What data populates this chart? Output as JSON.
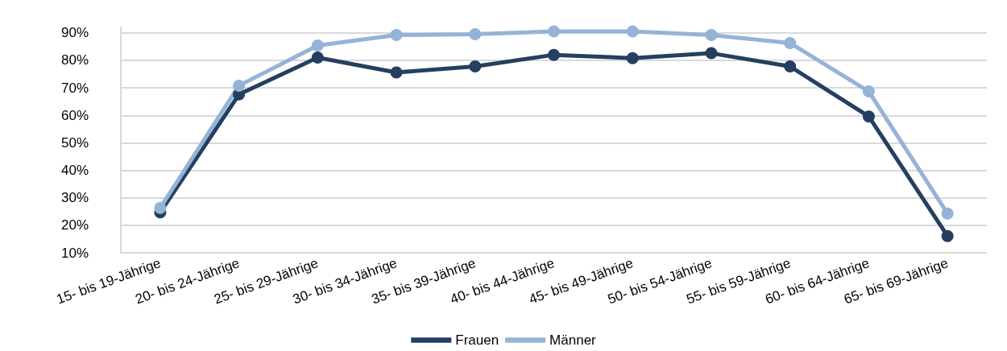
{
  "chart_data": {
    "type": "line",
    "categories": [
      "15- bis 19-Jährige",
      "20- bis 24-Jährige",
      "25- bis 29-Jährige",
      "30- bis 34-Jährige",
      "35- bis 39-Jährige",
      "40- bis 44-Jährige",
      "45- bis 49-Jährige",
      "50- bis 54-Jährige",
      "55- bis 59-Jährige",
      "60- bis 64-Jährige",
      "65- bis 69-Jährige"
    ],
    "series": [
      {
        "name": "Frauen",
        "color": "#243f60",
        "values": [
          24.7,
          67.6,
          81.0,
          75.6,
          77.8,
          82.0,
          80.8,
          82.6,
          77.8,
          59.6,
          16.1
        ]
      },
      {
        "name": "Männer",
        "color": "#95b3d7",
        "values": [
          26.3,
          70.8,
          85.4,
          89.2,
          89.5,
          90.5,
          90.5,
          89.2,
          86.3,
          68.7,
          24.3
        ]
      }
    ],
    "ylim": [
      10,
      92
    ],
    "yticks": [
      {
        "value": 10,
        "label": "10%"
      },
      {
        "value": 20,
        "label": "20%"
      },
      {
        "value": 30,
        "label": "30%"
      },
      {
        "value": 40,
        "label": "40%"
      },
      {
        "value": 50,
        "label": "50%"
      },
      {
        "value": 60,
        "label": "60%"
      },
      {
        "value": 70,
        "label": "70%"
      },
      {
        "value": 80,
        "label": "80%"
      },
      {
        "value": 90,
        "label": "90%"
      }
    ],
    "grid": "y",
    "legend": "bottom",
    "marker": "circle",
    "line_style": "solid"
  }
}
